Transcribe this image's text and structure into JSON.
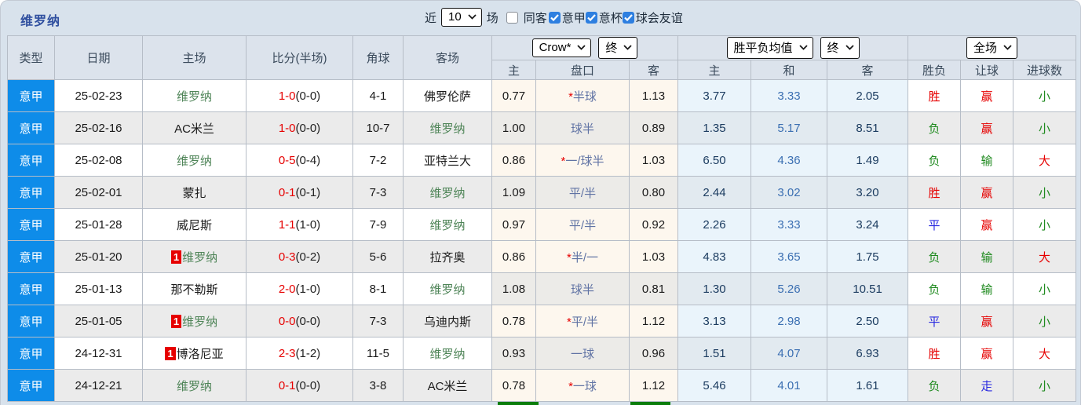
{
  "header": {
    "title": "维罗纳",
    "recent_label": "近",
    "recent_select": "10",
    "matches_label": "场",
    "filters": [
      {
        "label": "同客",
        "checked": false
      },
      {
        "label": "意甲",
        "checked": true
      },
      {
        "label": "意杯",
        "checked": true
      },
      {
        "label": "球会友谊",
        "checked": true
      }
    ]
  },
  "columns": {
    "type": "类型",
    "date": "日期",
    "home": "主场",
    "score": "比分(半场)",
    "corners": "角球",
    "away": "客场",
    "odds_company_select": "Crow*",
    "odds_time_select": "终",
    "odds_sub": [
      "主",
      "盘口",
      "客"
    ],
    "avg_select": "胜平负均值",
    "avg_time_select": "终",
    "avg_sub": [
      "主",
      "和",
      "客"
    ],
    "result_select": "全场",
    "result_sub": [
      "胜负",
      "让球",
      "进球数"
    ]
  },
  "colors": {
    "league_blue": "#0e8ce9",
    "result_red": "#e60000",
    "result_green": "#1f8a1f",
    "result_blue": "#2a2ae0",
    "verona_green": "#4e8457"
  },
  "rows": [
    {
      "type": "意甲",
      "date": "25-02-23",
      "home": {
        "name": "维罗纳",
        "verona": true,
        "badge": ""
      },
      "score": {
        "ft": "1-0",
        "ht": "(0-0)"
      },
      "corners": "4-1",
      "away": {
        "name": "佛罗伦萨",
        "verona": false,
        "badge": ""
      },
      "odds": {
        "home": "0.77",
        "star": true,
        "handicap": "半球",
        "away": "1.13"
      },
      "avg": {
        "home": "3.77",
        "draw": "3.33",
        "away": "2.05"
      },
      "results": [
        {
          "t": "胜",
          "c": "red"
        },
        {
          "t": "赢",
          "c": "red"
        },
        {
          "t": "小",
          "c": "green"
        }
      ]
    },
    {
      "type": "意甲",
      "date": "25-02-16",
      "home": {
        "name": "AC米兰",
        "verona": false,
        "badge": ""
      },
      "score": {
        "ft": "1-0",
        "ht": "(0-0)"
      },
      "corners": "10-7",
      "away": {
        "name": "维罗纳",
        "verona": true,
        "badge": ""
      },
      "odds": {
        "home": "1.00",
        "star": false,
        "handicap": "球半",
        "away": "0.89"
      },
      "avg": {
        "home": "1.35",
        "draw": "5.17",
        "away": "8.51"
      },
      "results": [
        {
          "t": "负",
          "c": "green"
        },
        {
          "t": "赢",
          "c": "red"
        },
        {
          "t": "小",
          "c": "green"
        }
      ]
    },
    {
      "type": "意甲",
      "date": "25-02-08",
      "home": {
        "name": "维罗纳",
        "verona": true,
        "badge": ""
      },
      "score": {
        "ft": "0-5",
        "ht": "(0-4)"
      },
      "corners": "7-2",
      "away": {
        "name": "亚特兰大",
        "verona": false,
        "badge": ""
      },
      "odds": {
        "home": "0.86",
        "star": true,
        "handicap": "一/球半",
        "away": "1.03"
      },
      "avg": {
        "home": "6.50",
        "draw": "4.36",
        "away": "1.49"
      },
      "results": [
        {
          "t": "负",
          "c": "green"
        },
        {
          "t": "输",
          "c": "green"
        },
        {
          "t": "大",
          "c": "red"
        }
      ]
    },
    {
      "type": "意甲",
      "date": "25-02-01",
      "home": {
        "name": "蒙扎",
        "verona": false,
        "badge": ""
      },
      "score": {
        "ft": "0-1",
        "ht": "(0-1)"
      },
      "corners": "7-3",
      "away": {
        "name": "维罗纳",
        "verona": true,
        "badge": ""
      },
      "odds": {
        "home": "1.09",
        "star": false,
        "handicap": "平/半",
        "away": "0.80"
      },
      "avg": {
        "home": "2.44",
        "draw": "3.02",
        "away": "3.20"
      },
      "results": [
        {
          "t": "胜",
          "c": "red"
        },
        {
          "t": "赢",
          "c": "red"
        },
        {
          "t": "小",
          "c": "green"
        }
      ]
    },
    {
      "type": "意甲",
      "date": "25-01-28",
      "home": {
        "name": "威尼斯",
        "verona": false,
        "badge": ""
      },
      "score": {
        "ft": "1-1",
        "ht": "(1-0)"
      },
      "corners": "7-9",
      "away": {
        "name": "维罗纳",
        "verona": true,
        "badge": ""
      },
      "odds": {
        "home": "0.97",
        "star": false,
        "handicap": "平/半",
        "away": "0.92"
      },
      "avg": {
        "home": "2.26",
        "draw": "3.33",
        "away": "3.24"
      },
      "results": [
        {
          "t": "平",
          "c": "blue"
        },
        {
          "t": "赢",
          "c": "red"
        },
        {
          "t": "小",
          "c": "green"
        }
      ]
    },
    {
      "type": "意甲",
      "date": "25-01-20",
      "home": {
        "name": "维罗纳",
        "verona": true,
        "badge": "1"
      },
      "score": {
        "ft": "0-3",
        "ht": "(0-2)"
      },
      "corners": "5-6",
      "away": {
        "name": "拉齐奥",
        "verona": false,
        "badge": ""
      },
      "odds": {
        "home": "0.86",
        "star": true,
        "handicap": "半/一",
        "away": "1.03"
      },
      "avg": {
        "home": "4.83",
        "draw": "3.65",
        "away": "1.75"
      },
      "results": [
        {
          "t": "负",
          "c": "green"
        },
        {
          "t": "输",
          "c": "green"
        },
        {
          "t": "大",
          "c": "red"
        }
      ]
    },
    {
      "type": "意甲",
      "date": "25-01-13",
      "home": {
        "name": "那不勒斯",
        "verona": false,
        "badge": ""
      },
      "score": {
        "ft": "2-0",
        "ht": "(1-0)"
      },
      "corners": "8-1",
      "away": {
        "name": "维罗纳",
        "verona": true,
        "badge": ""
      },
      "odds": {
        "home": "1.08",
        "star": false,
        "handicap": "球半",
        "away": "0.81"
      },
      "avg": {
        "home": "1.30",
        "draw": "5.26",
        "away": "10.51"
      },
      "results": [
        {
          "t": "负",
          "c": "green"
        },
        {
          "t": "输",
          "c": "green"
        },
        {
          "t": "小",
          "c": "green"
        }
      ]
    },
    {
      "type": "意甲",
      "date": "25-01-05",
      "home": {
        "name": "维罗纳",
        "verona": true,
        "badge": "1"
      },
      "score": {
        "ft": "0-0",
        "ht": "(0-0)"
      },
      "corners": "7-3",
      "away": {
        "name": "乌迪内斯",
        "verona": false,
        "badge": ""
      },
      "odds": {
        "home": "0.78",
        "star": true,
        "handicap": "平/半",
        "away": "1.12"
      },
      "avg": {
        "home": "3.13",
        "draw": "2.98",
        "away": "2.50"
      },
      "results": [
        {
          "t": "平",
          "c": "blue"
        },
        {
          "t": "赢",
          "c": "red"
        },
        {
          "t": "小",
          "c": "green"
        }
      ]
    },
    {
      "type": "意甲",
      "date": "24-12-31",
      "home": {
        "name": "博洛尼亚",
        "verona": false,
        "badge": "1"
      },
      "score": {
        "ft": "2-3",
        "ht": "(1-2)"
      },
      "corners": "11-5",
      "away": {
        "name": "维罗纳",
        "verona": true,
        "badge": ""
      },
      "odds": {
        "home": "0.93",
        "star": false,
        "handicap": "一球",
        "away": "0.96"
      },
      "avg": {
        "home": "1.51",
        "draw": "4.07",
        "away": "6.93"
      },
      "results": [
        {
          "t": "胜",
          "c": "red"
        },
        {
          "t": "赢",
          "c": "red"
        },
        {
          "t": "大",
          "c": "red"
        }
      ]
    },
    {
      "type": "意甲",
      "date": "24-12-21",
      "home": {
        "name": "维罗纳",
        "verona": true,
        "badge": ""
      },
      "score": {
        "ft": "0-1",
        "ht": "(0-0)"
      },
      "corners": "3-8",
      "away": {
        "name": "AC米兰",
        "verona": false,
        "badge": ""
      },
      "odds": {
        "home": "0.78",
        "star": true,
        "handicap": "一球",
        "away": "1.12"
      },
      "avg": {
        "home": "5.46",
        "draw": "4.01",
        "away": "1.61"
      },
      "results": [
        {
          "t": "负",
          "c": "green"
        },
        {
          "t": "走",
          "c": "blue"
        },
        {
          "t": "小",
          "c": "green"
        }
      ]
    }
  ]
}
